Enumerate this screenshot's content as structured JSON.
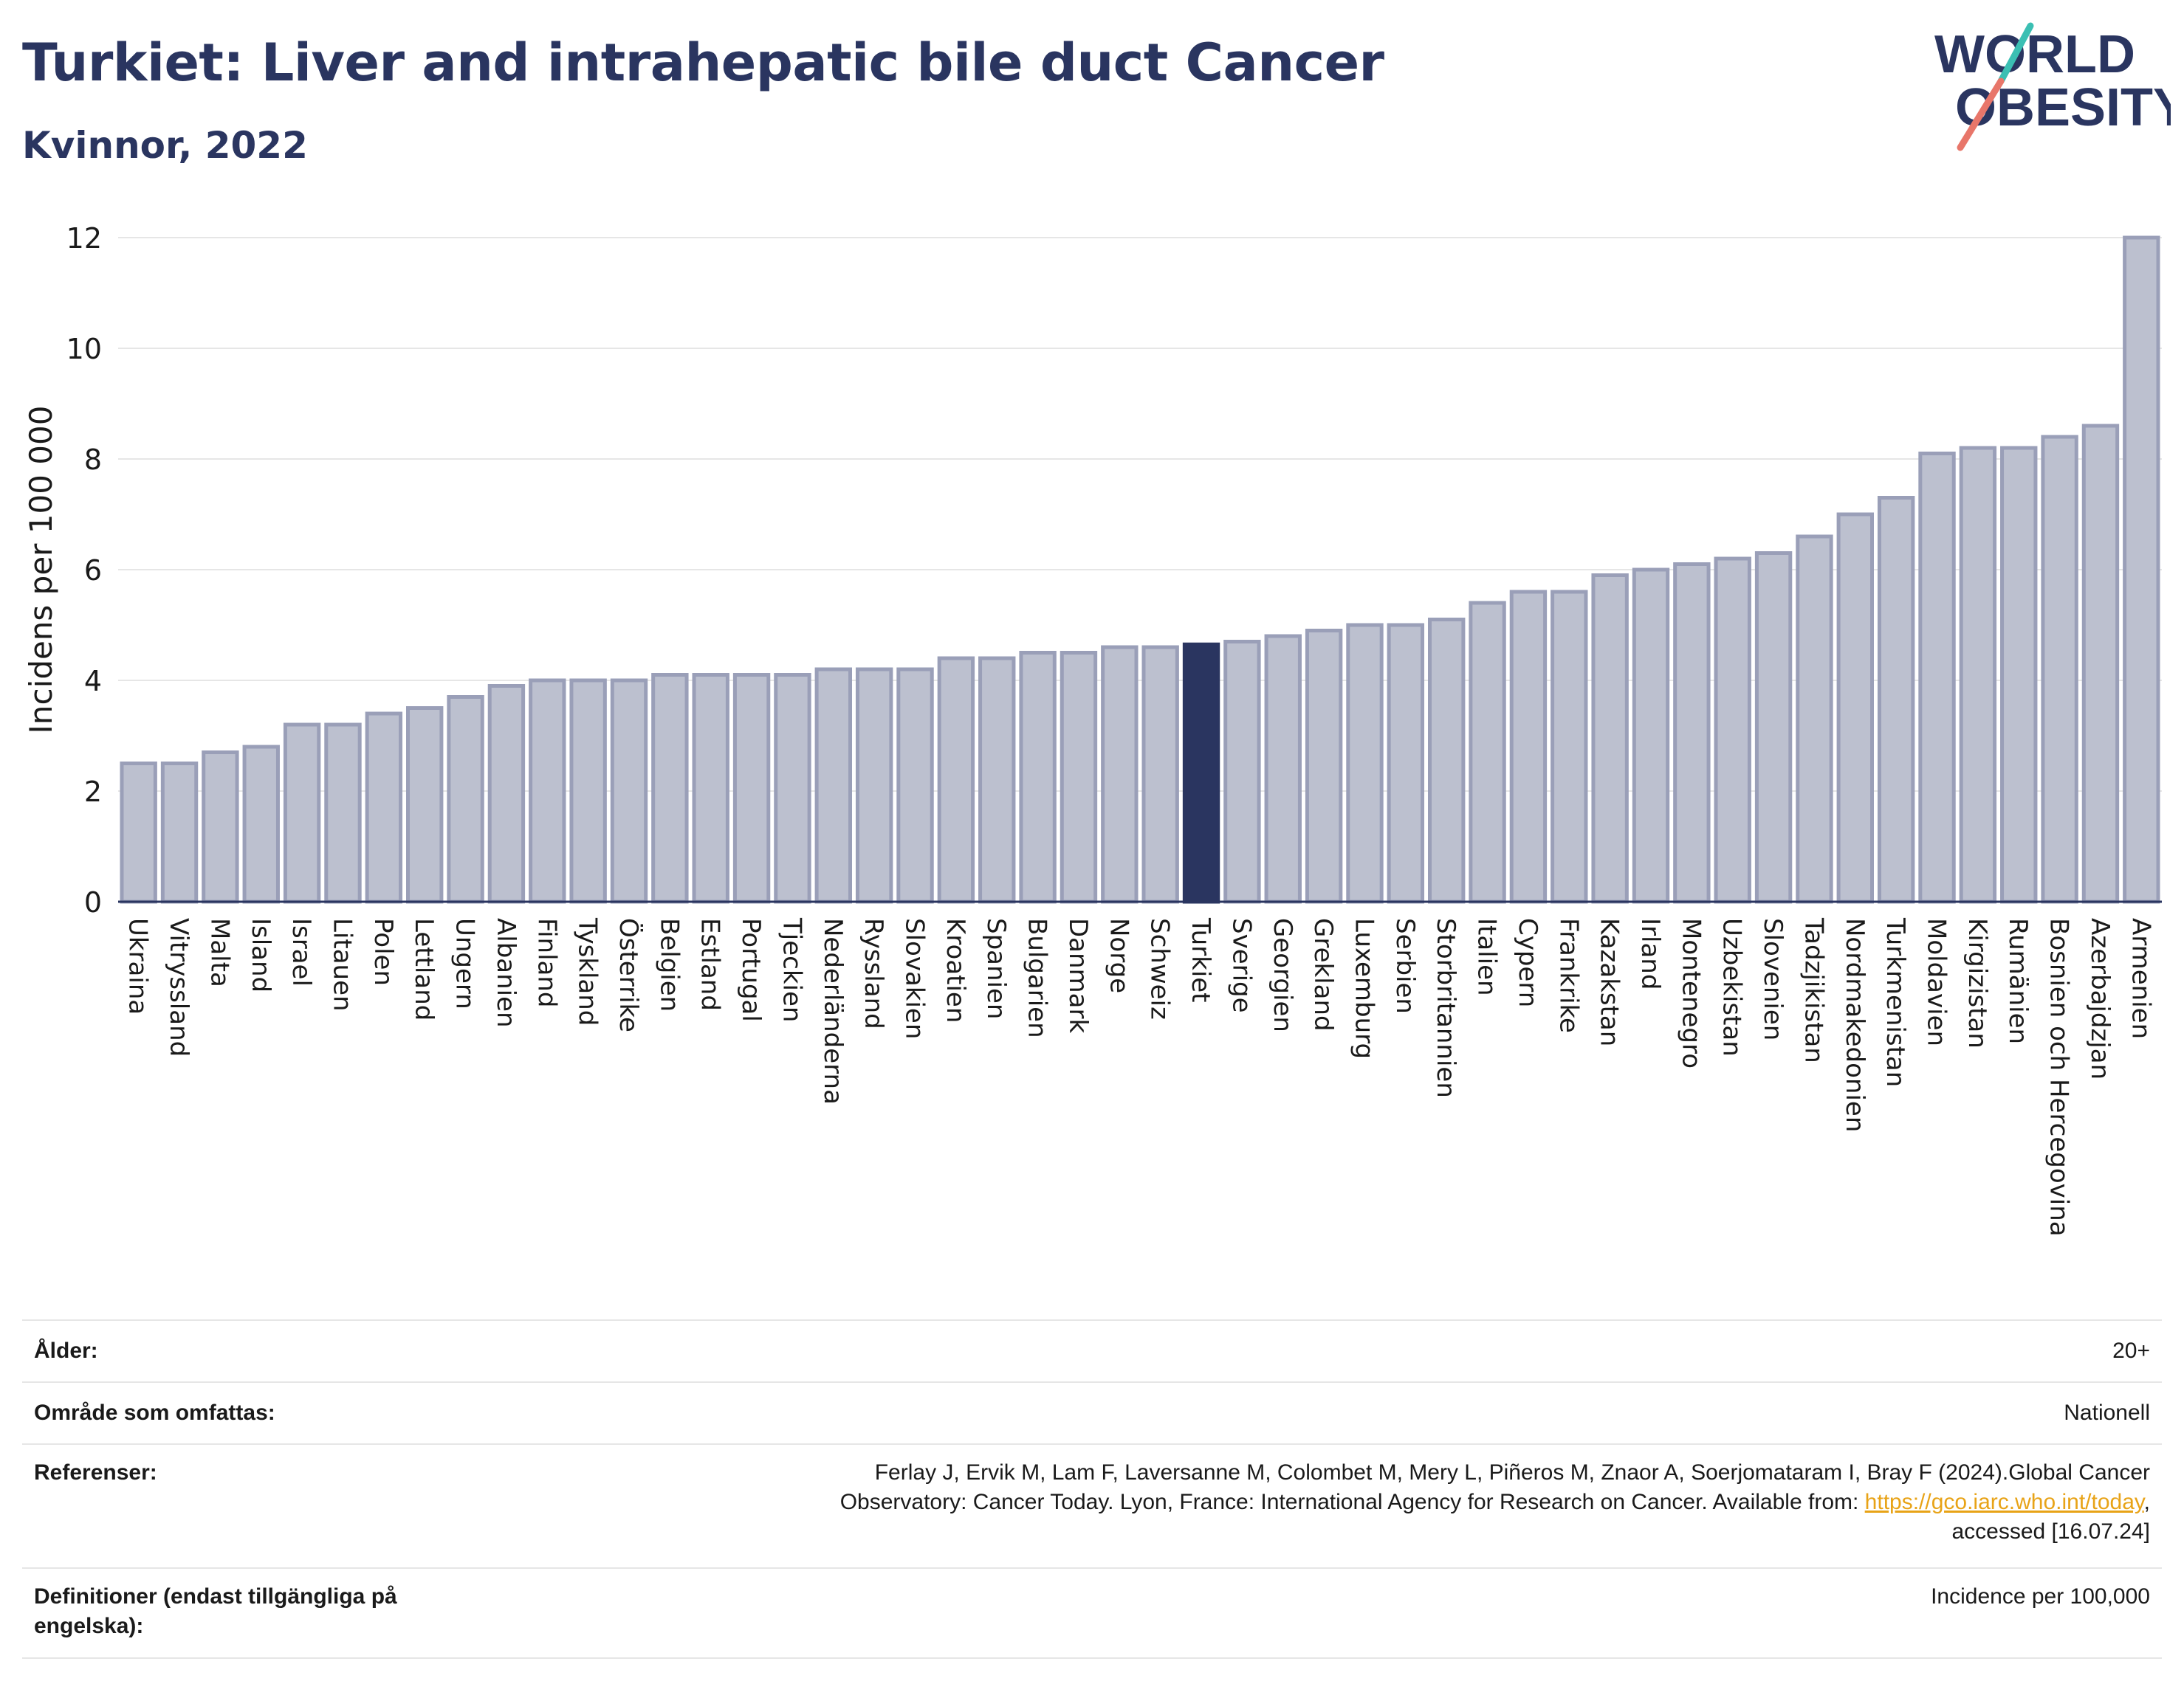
{
  "header": {
    "title": "Turkiet: Liver and intrahepatic bile duct Cancer",
    "subtitle": "Kvinnor, 2022"
  },
  "logo": {
    "line1": "WORLD",
    "line2": "OBESITY",
    "colors": {
      "text": "#2a3560",
      "slash_teal": "#3bbfb3",
      "slash_coral": "#e8766a"
    }
  },
  "chart_data": {
    "type": "bar",
    "title": "Turkiet: Liver and intrahepatic bile duct Cancer",
    "subtitle": "Kvinnor, 2022",
    "ylabel": "Incidens per 100 000",
    "xlabel": "",
    "ylim": [
      0,
      12
    ],
    "yticks": [
      0,
      2,
      4,
      6,
      8,
      10,
      12
    ],
    "grid": true,
    "highlight": "Turkiet",
    "colors": {
      "bar": "#bcc0cf",
      "bar_edge": "#9a9fb8",
      "highlight": "#2a3560",
      "grid": "#e6e6e6"
    },
    "categories": [
      "Ukraina",
      "Vitryssland",
      "Malta",
      "Island",
      "Israel",
      "Litauen",
      "Polen",
      "Lettland",
      "Ungern",
      "Albanien",
      "Finland",
      "Tyskland",
      "Österrike",
      "Belgien",
      "Estland",
      "Portugal",
      "Tjeckien",
      "Nederländerna",
      "Ryssland",
      "Slovakien",
      "Kroatien",
      "Spanien",
      "Bulgarien",
      "Danmark",
      "Norge",
      "Schweiz",
      "Turkiet",
      "Sverige",
      "Georgien",
      "Grekland",
      "Luxemburg",
      "Serbien",
      "Storbritannien",
      "Italien",
      "Cypern",
      "Frankrike",
      "Kazakstan",
      "Irland",
      "Montenegro",
      "Uzbekistan",
      "Slovenien",
      "Tadzjikistan",
      "Nordmakedonien",
      "Turkmenistan",
      "Moldavien",
      "Kirgizistan",
      "Rumänien",
      "Bosnien och Hercegovina",
      "Azerbajdzjan",
      "Armenien"
    ],
    "values": [
      2.5,
      2.5,
      2.7,
      2.8,
      3.2,
      3.2,
      3.4,
      3.5,
      3.7,
      3.9,
      4.0,
      4.0,
      4.0,
      4.1,
      4.1,
      4.1,
      4.1,
      4.2,
      4.2,
      4.2,
      4.4,
      4.4,
      4.5,
      4.5,
      4.6,
      4.6,
      4.65,
      4.7,
      4.8,
      4.9,
      5.0,
      5.0,
      5.1,
      5.4,
      5.6,
      5.6,
      5.9,
      6.0,
      6.1,
      6.2,
      6.3,
      6.6,
      7.0,
      7.3,
      8.1,
      8.2,
      8.2,
      8.4,
      8.6,
      12.0
    ]
  },
  "meta": {
    "age_label": "Ålder:",
    "age_value": "20+",
    "area_label": "Område som omfattas:",
    "area_value": "Nationell",
    "ref_label": "Referenser:",
    "ref_line1": "Ferlay J, Ervik M, Lam F, Laversanne M, Colombet M, Mery L, Piñeros M, Znaor A, Soerjomataram I, Bray F (2024).Global Cancer",
    "ref_line2": "Observatory: Cancer Today. Lyon, France: International Agency for Research on Cancer. Available from: ",
    "ref_link": "https://gco.iarc.who.int/today",
    "ref_line2_end": ",",
    "ref_line3": "accessed [16.07.24]",
    "def_label": "Definitioner (endast tillgängliga på engelska):",
    "def_value": "Incidence per 100,000"
  }
}
